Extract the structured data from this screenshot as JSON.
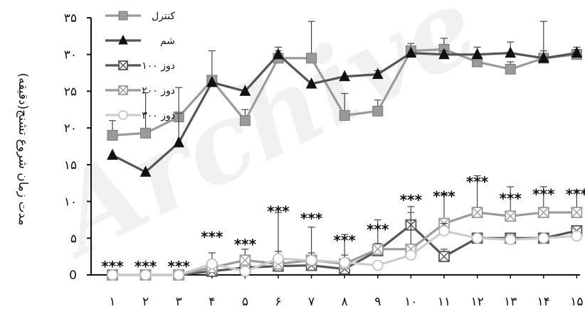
{
  "chart_data": {
    "type": "line",
    "title": "",
    "xlabel": "",
    "ylabel": "مدت زمان شروع تشنج(دقیقه)",
    "categories": [
      "۱",
      "۲",
      "۳",
      "۴",
      "۵",
      "۶",
      "۷",
      "۸",
      "۹",
      "۱۰",
      "۱۱",
      "۱۲",
      "۱۳",
      "۱۴",
      "۱۵"
    ],
    "ylim": [
      0,
      35
    ],
    "yticks": [
      {
        "value": 0,
        "label": "0"
      },
      {
        "value": 5,
        "label": "۵"
      },
      {
        "value": 10,
        "label": "۱۰"
      },
      {
        "value": 15,
        "label": "۱۵"
      },
      {
        "value": 20,
        "label": "۲۰"
      },
      {
        "value": 25,
        "label": "۲۵"
      },
      {
        "value": 30,
        "label": "۳۰"
      },
      {
        "value": 35,
        "label": "۳۵"
      }
    ],
    "legend_position": "top-left",
    "series": [
      {
        "name": "کنترل",
        "color": "#9a9a9a",
        "marker": "square",
        "values": [
          19,
          19.3,
          21.5,
          26.5,
          21,
          29.5,
          29.5,
          21.7,
          22.3,
          30.5,
          30.7,
          29,
          28,
          29.5,
          30
        ],
        "errors": [
          2,
          5.5,
          4,
          4,
          1.5,
          1.5,
          5,
          3,
          1.5,
          1,
          1.5,
          1,
          1,
          1,
          1
        ]
      },
      {
        "name": "شم",
        "color": "#555555",
        "marker": "triangle",
        "values": [
          16.3,
          14,
          18,
          26.2,
          25,
          30,
          26,
          27,
          27.3,
          30.2,
          30,
          30,
          30.2,
          29.5,
          30.2
        ],
        "errors": [
          0,
          0,
          4,
          0,
          0,
          0.5,
          0,
          0,
          0.5,
          0,
          0.5,
          1,
          1.5,
          5,
          0.5
        ]
      },
      {
        "name": "دوز ۱۰۰",
        "color": "#555555",
        "marker": "boxcross",
        "values": [
          0,
          0,
          0,
          0.5,
          1,
          1.2,
          1.3,
          0.8,
          3.3,
          6.8,
          2.5,
          5,
          5,
          5,
          6
        ],
        "errors": [
          0,
          0,
          0,
          0.5,
          0.5,
          0.5,
          0.5,
          0.5,
          1,
          2.5,
          1,
          0.5,
          0.5,
          0.5,
          0.5
        ]
      },
      {
        "name": "دوز ۲۰۰",
        "color": "#9a9a9a",
        "marker": "boxcross",
        "values": [
          0,
          0,
          0,
          1,
          2,
          1.5,
          2,
          1.5,
          3.5,
          3.5,
          7,
          8.5,
          8,
          8.5,
          8.5
        ],
        "errors": [
          0,
          0,
          0,
          2,
          1.5,
          7,
          4.5,
          4,
          4,
          5,
          4,
          5,
          4,
          3.5,
          3
        ]
      },
      {
        "name": "دوز ۳۰۰",
        "color": "#cccccc",
        "marker": "circle",
        "values": [
          0,
          0,
          0,
          1.5,
          0.5,
          2.2,
          2,
          1.7,
          1.3,
          2.7,
          6,
          5,
          4.8,
          5,
          5.3
        ],
        "errors": [
          0,
          0,
          0,
          0.5,
          0.5,
          1,
          1,
          1,
          0.5,
          0.5,
          1,
          0.5,
          0.5,
          0.5,
          0.5
        ]
      }
    ],
    "significance_label": "***",
    "significance_categories": [
      "۱",
      "۲",
      "۳",
      "۴",
      "۵",
      "۶",
      "۷",
      "۸",
      "۹",
      "۱۰",
      "۱۱",
      "۱۲",
      "۱۳",
      "۱۴",
      "۱۵"
    ],
    "significance_values": [
      0.5,
      0.5,
      0.5,
      4.5,
      3.5,
      8,
      7,
      4,
      5.5,
      9.5,
      10,
      12,
      9.7,
      10.3,
      10.3
    ]
  },
  "watermark": "Archive"
}
